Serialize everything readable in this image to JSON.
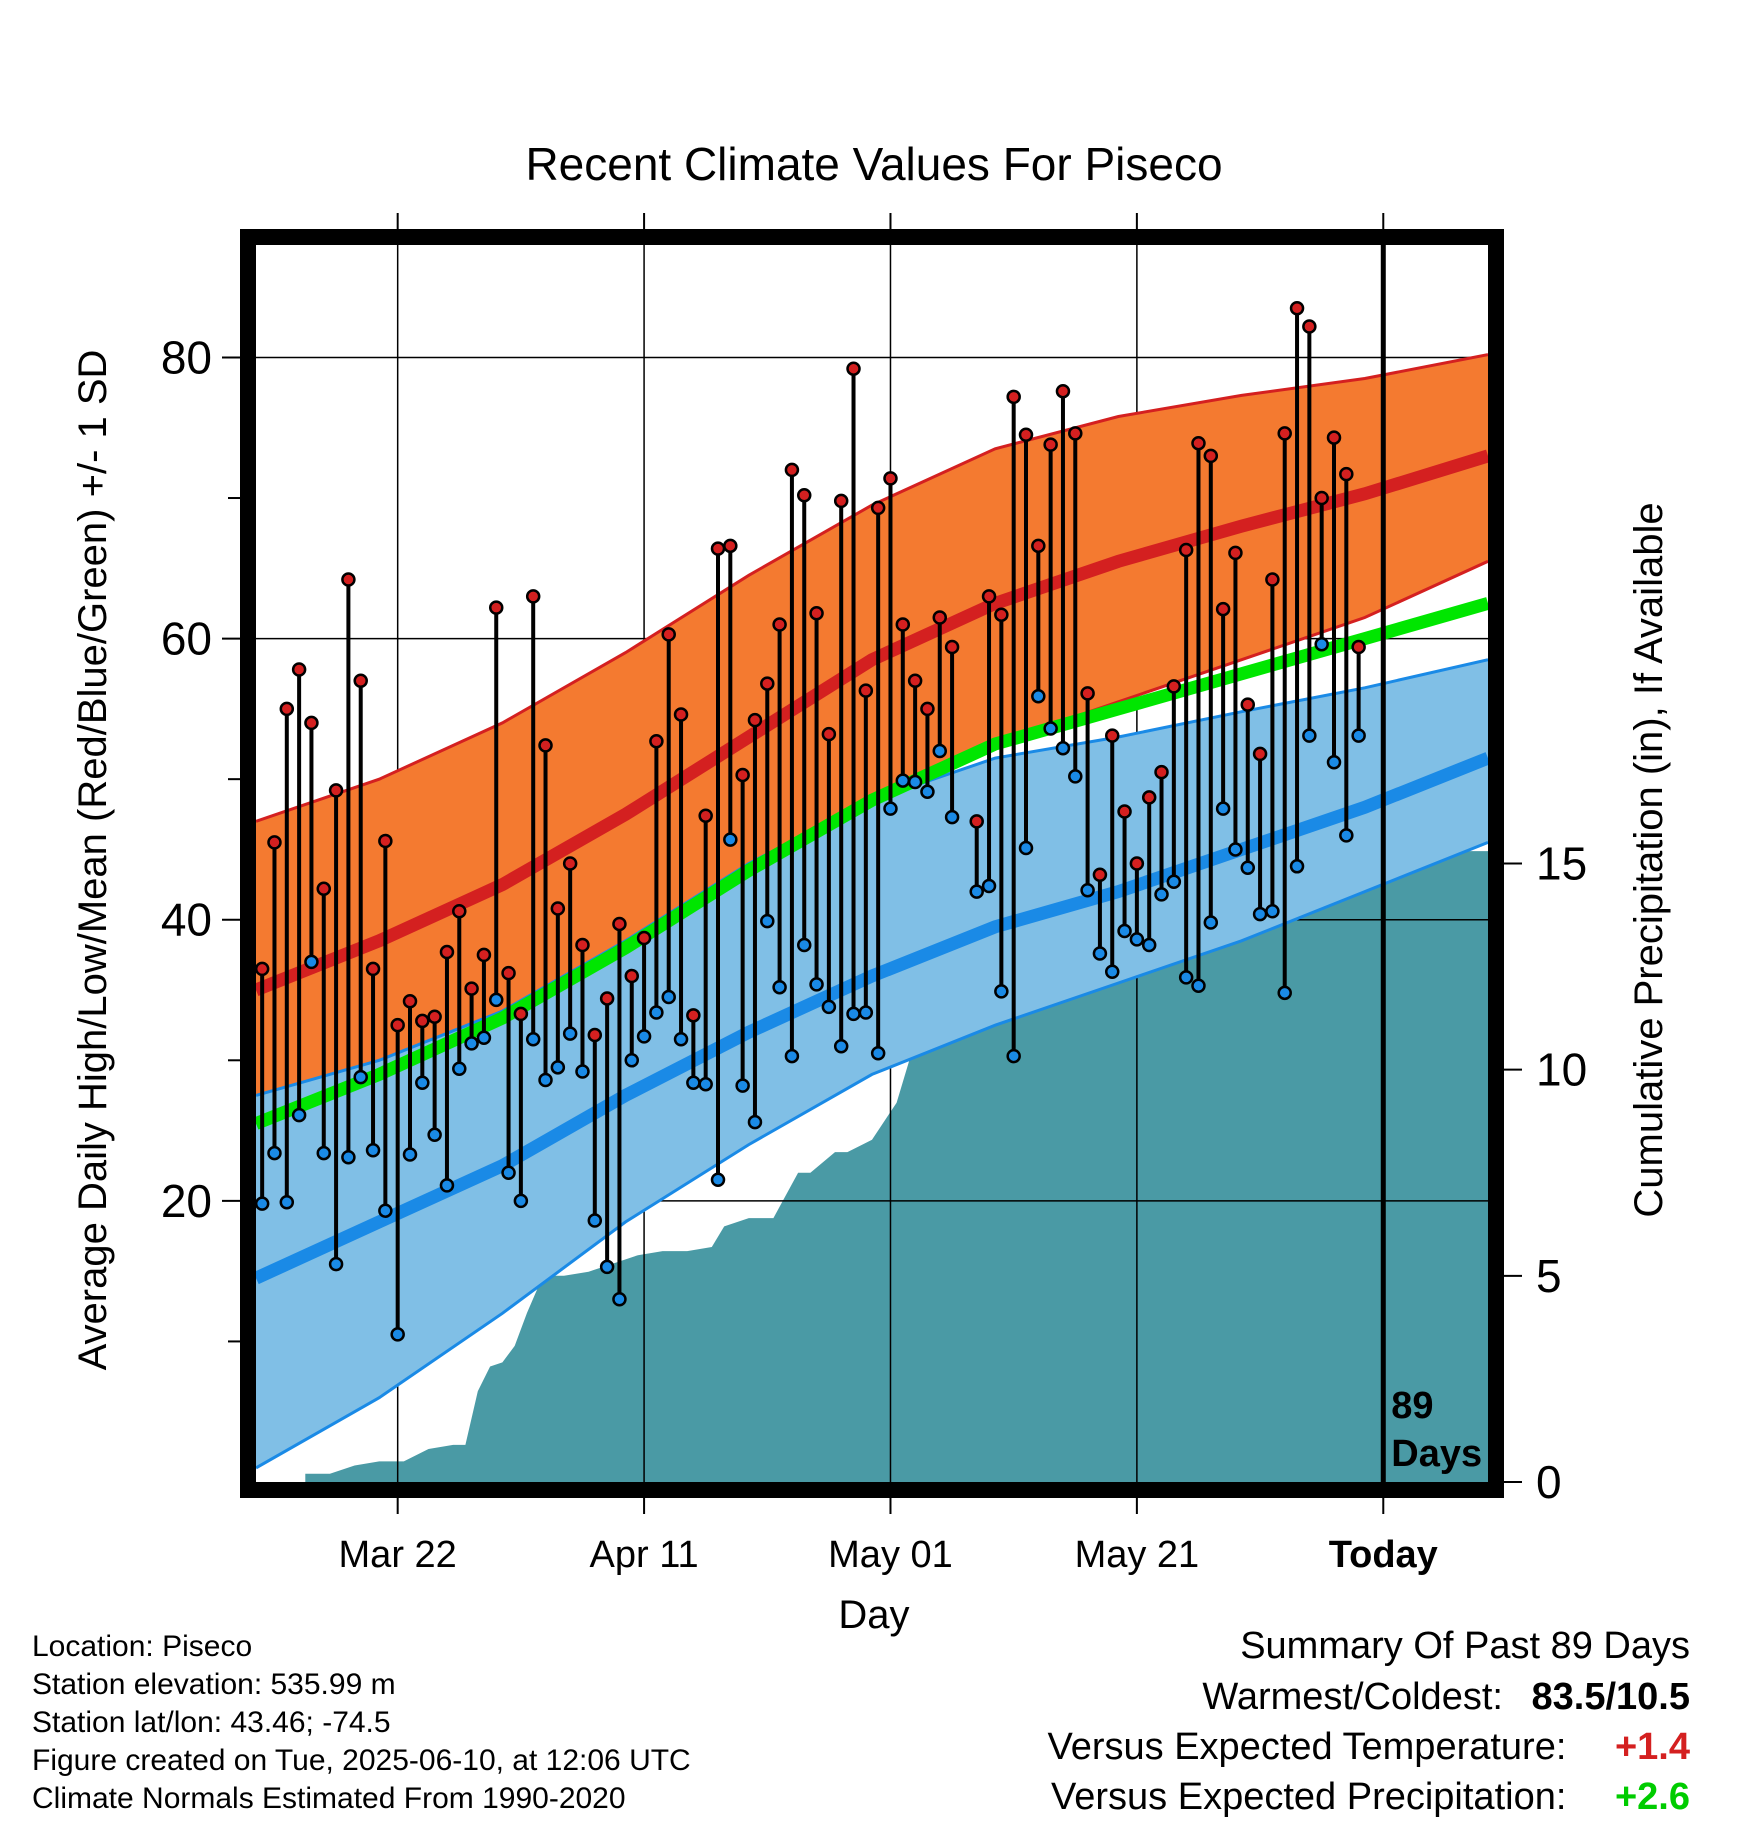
{
  "chart_data": {
    "type": "line",
    "title": "Recent Climate Values For Piseco",
    "xlabel": "Day",
    "ylabel": "Average Daily High/Low/Mean (Red/Blue/Green) +/- 1 SD",
    "y2label": "Cumulative Precipitation (in), If Available",
    "ylim": [
      0,
      88
    ],
    "y2lim": [
      0,
      30
    ],
    "xlim": [
      0,
      100
    ],
    "x_ticks": [
      {
        "day": 11.5,
        "label": "Mar 22"
      },
      {
        "day": 31.5,
        "label": "Apr 11"
      },
      {
        "day": 51.5,
        "label": "May 01"
      },
      {
        "day": 71.5,
        "label": "May 21"
      },
      {
        "day": 91.5,
        "label": "Today"
      }
    ],
    "y_ticks": [
      20,
      40,
      60,
      80
    ],
    "y_minor_ticks": [
      10,
      30,
      50,
      70
    ],
    "y2_ticks": [
      0,
      5,
      10,
      15
    ],
    "grid": true,
    "today_day": 91.5,
    "today_marker": "89 Days",
    "colors": {
      "high_band": "#f47a30",
      "high_band_edge": "#d42020",
      "normal_high": "#d42020",
      "low_band": "#80bfe6",
      "low_band_edge": "#1a8ae6",
      "normal_low": "#1a8ae6",
      "normal_mean": "#00e600",
      "precip": "#4a9aa5",
      "high_point": "#d42020",
      "low_point": "#1a8ae6"
    },
    "normals": {
      "x": [
        0,
        10,
        20,
        30,
        40,
        50,
        60,
        70,
        80,
        90,
        100
      ],
      "high_mean": [
        35,
        38.5,
        42.5,
        47.5,
        53,
        58.5,
        62.5,
        65.5,
        68,
        70.3,
        73
      ],
      "high_upper": [
        47,
        50,
        54,
        59,
        64.5,
        69.5,
        73.5,
        75.8,
        77.3,
        78.5,
        80.2
      ],
      "high_lower": [
        27,
        29,
        32.5,
        37,
        42.5,
        48.5,
        52.5,
        55.5,
        58.5,
        61.5,
        65.5
      ],
      "mean": [
        25.5,
        29,
        33,
        38,
        43.5,
        48.5,
        52.5,
        55,
        57.5,
        60,
        62.5
      ],
      "low_upper": [
        27.5,
        30,
        33.5,
        38.5,
        44,
        48.5,
        51.5,
        53,
        54.8,
        56.5,
        58.5
      ],
      "low_mean": [
        14.5,
        18.5,
        22.5,
        27.5,
        32,
        36,
        39.5,
        42,
        45,
        48,
        51.5
      ],
      "low_lower": [
        1,
        6,
        12,
        18.5,
        24,
        29,
        32.5,
        35.5,
        38.5,
        42,
        45.5
      ]
    },
    "daily": [
      {
        "high": 36.5,
        "low": 19.8
      },
      {
        "high": 45.5,
        "low": 23.4
      },
      {
        "high": 55,
        "low": 19.9
      },
      {
        "high": 57.8,
        "low": 26.1
      },
      {
        "high": 54,
        "low": 37
      },
      {
        "high": 42.2,
        "low": 23.4
      },
      {
        "high": 49.2,
        "low": 15.5
      },
      {
        "high": 64.2,
        "low": 23.1
      },
      {
        "high": 57,
        "low": 28.8
      },
      {
        "high": 36.5,
        "low": 23.6
      },
      {
        "high": 45.6,
        "low": 19.3
      },
      {
        "high": 32.5,
        "low": 10.5
      },
      {
        "high": 34.2,
        "low": 23.3
      },
      {
        "high": 32.8,
        "low": 28.4
      },
      {
        "high": 33.1,
        "low": 24.7
      },
      {
        "high": 37.7,
        "low": 21.1
      },
      {
        "high": 40.6,
        "low": 29.4
      },
      {
        "high": 35.1,
        "low": 31.2
      },
      {
        "high": 37.5,
        "low": 31.6
      },
      {
        "high": 62.2,
        "low": 34.3
      },
      {
        "high": 36.2,
        "low": 22
      },
      {
        "high": 33.3,
        "low": 20
      },
      {
        "high": 63,
        "low": 31.5
      },
      {
        "high": 52.4,
        "low": 28.6
      },
      {
        "high": 40.8,
        "low": 29.5
      },
      {
        "high": 44,
        "low": 31.9
      },
      {
        "high": 38.2,
        "low": 29.2
      },
      {
        "high": 31.8,
        "low": 18.6
      },
      {
        "high": 34.4,
        "low": 15.3
      },
      {
        "high": 39.7,
        "low": 13
      },
      {
        "high": 36,
        "low": 30
      },
      {
        "high": 38.7,
        "low": 31.7
      },
      {
        "high": 52.7,
        "low": 33.4
      },
      {
        "high": 60.3,
        "low": 34.5
      },
      {
        "high": 54.6,
        "low": 31.5
      },
      {
        "high": 33.2,
        "low": 28.4
      },
      {
        "high": 47.4,
        "low": 28.3
      },
      {
        "high": 66.4,
        "low": 21.5
      },
      {
        "high": 66.6,
        "low": 45.7
      },
      {
        "high": 50.3,
        "low": 28.2
      },
      {
        "high": 54.2,
        "low": 25.6
      },
      {
        "high": 56.8,
        "low": 39.9
      },
      {
        "high": 61,
        "low": 35.2
      },
      {
        "high": 72,
        "low": 30.3
      },
      {
        "high": 70.2,
        "low": 38.2
      },
      {
        "high": 61.8,
        "low": 35.4
      },
      {
        "high": 53.2,
        "low": 33.8
      },
      {
        "high": 69.8,
        "low": 31
      },
      {
        "high": 79.2,
        "low": 33.3
      },
      {
        "high": 56.3,
        "low": 33.4
      },
      {
        "high": 69.3,
        "low": 30.5
      },
      {
        "high": 71.4,
        "low": 47.9
      },
      {
        "high": 61,
        "low": 49.9
      },
      {
        "high": 57,
        "low": 49.8
      },
      {
        "high": 55,
        "low": 49.1
      },
      {
        "high": 61.5,
        "low": 52
      },
      {
        "high": 59.4,
        "low": 47.3
      },
      {
        "high": null,
        "low": null
      },
      {
        "high": 47,
        "low": 42
      },
      {
        "high": 63,
        "low": 42.4
      },
      {
        "high": 61.7,
        "low": 34.9
      },
      {
        "high": 77.2,
        "low": 30.3
      },
      {
        "high": 74.5,
        "low": 45.1
      },
      {
        "high": 66.6,
        "low": 55.9
      },
      {
        "high": 73.8,
        "low": 53.6
      },
      {
        "high": 77.6,
        "low": 52.2
      },
      {
        "high": 74.6,
        "low": 50.2
      },
      {
        "high": 56.1,
        "low": 42.1
      },
      {
        "high": 43.2,
        "low": 37.6
      },
      {
        "high": 53.1,
        "low": 36.3
      },
      {
        "high": 47.7,
        "low": 39.2
      },
      {
        "high": 44,
        "low": 38.6
      },
      {
        "high": 48.7,
        "low": 38.2
      },
      {
        "high": 50.5,
        "low": 41.8
      },
      {
        "high": 56.6,
        "low": 42.7
      },
      {
        "high": 66.3,
        "low": 35.9
      },
      {
        "high": 73.9,
        "low": 35.3
      },
      {
        "high": 73,
        "low": 39.8
      },
      {
        "high": 62.1,
        "low": 47.9
      },
      {
        "high": 66.1,
        "low": 45
      },
      {
        "high": 55.3,
        "low": 43.7
      },
      {
        "high": 51.8,
        "low": 40.4
      },
      {
        "high": 64.2,
        "low": 40.6
      },
      {
        "high": 74.6,
        "low": 34.8
      },
      {
        "high": 83.5,
        "low": 43.8
      },
      {
        "high": 82.2,
        "low": 53.1
      },
      {
        "high": 70,
        "low": 59.6
      },
      {
        "high": 74.3,
        "low": 51.2
      },
      {
        "high": 71.7,
        "low": 46
      },
      {
        "high": 59.4,
        "low": 53.1
      }
    ],
    "precip_cumulative": {
      "x": [
        4,
        6,
        8,
        10,
        12,
        14,
        16,
        17,
        18,
        19,
        20,
        21,
        22,
        23,
        24,
        25,
        27,
        29,
        31,
        33,
        35,
        37,
        38,
        40,
        42,
        44,
        45,
        47,
        48,
        50,
        52,
        53,
        54,
        55,
        56,
        57,
        58,
        59,
        60,
        61,
        62,
        63,
        64,
        65,
        66,
        67,
        68,
        69,
        70,
        71,
        72,
        74,
        76,
        78,
        79,
        80,
        82,
        84,
        86,
        87,
        88,
        90,
        92,
        94,
        96,
        98,
        100
      ],
      "cumulative": [
        0.2,
        0.2,
        0.4,
        0.5,
        0.5,
        0.8,
        0.9,
        0.9,
        2.2,
        2.8,
        2.9,
        3.3,
        4.1,
        4.8,
        5.0,
        5.0,
        5.1,
        5.3,
        5.5,
        5.6,
        5.6,
        5.7,
        6.2,
        6.4,
        6.4,
        7.5,
        7.5,
        8.0,
        8.0,
        8.3,
        9.2,
        10.2,
        11.2,
        11.3,
        11.8,
        12.5,
        12.5,
        12.5,
        12.5,
        12.5,
        12.5,
        12.5,
        12.9,
        13.5,
        13.5,
        13.5,
        13.5,
        13.6,
        13.9,
        14.2,
        14.2,
        14.4,
        14.5,
        14.5,
        14.5,
        14.7,
        14.8,
        14.8,
        14.8,
        14.9,
        15.2,
        15.3,
        15.3,
        15.3,
        15.3,
        15.3,
        15.3
      ]
    }
  },
  "location_info": {
    "line1": "Location: Piseco",
    "line2": "Station elevation: 535.99 m",
    "line3": "Station lat/lon: 43.46; -74.5",
    "line4": "Figure created on Tue, 2025-06-10, at 12:06 UTC",
    "line5": "Climate Normals Estimated From 1990-2020"
  },
  "summary": {
    "heading": "Summary Of Past 89 Days",
    "warmest_label": "Warmest/Coldest:",
    "warmest_value": "83.5/10.5",
    "temp_label": "Versus Expected Temperature:",
    "temp_value": "+1.4",
    "temp_color": "#d42020",
    "precip_label": "Versus Expected Precipitation:",
    "precip_value": "+2.6",
    "precip_color": "#00cc00"
  }
}
